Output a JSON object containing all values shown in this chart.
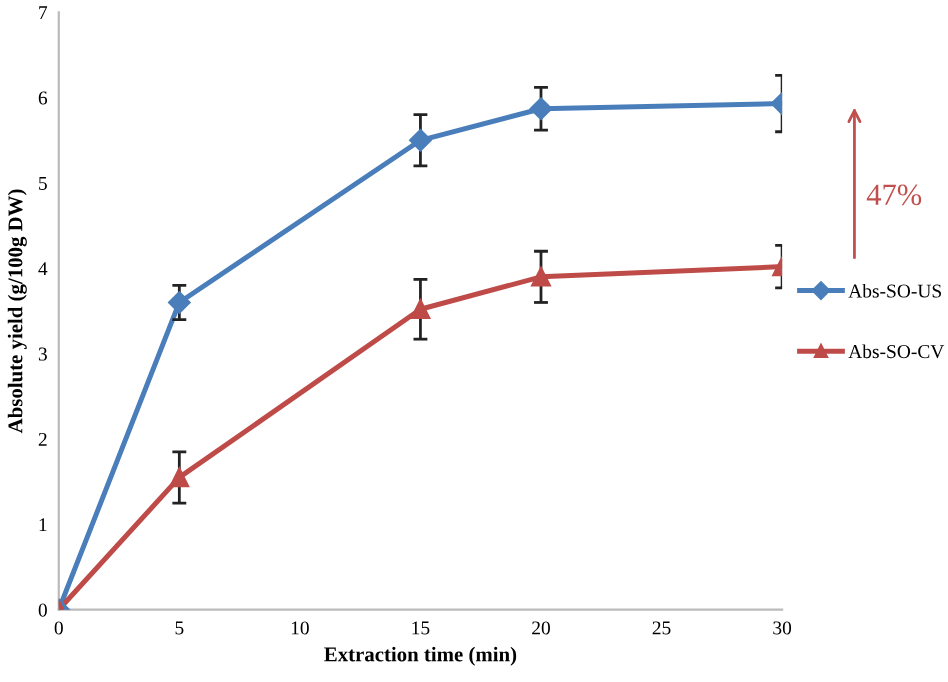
{
  "chart_data": {
    "type": "line",
    "xlabel": "Extraction time (min)",
    "ylabel": "Absolute yield (g/100g DW)",
    "x": [
      0,
      5,
      15,
      20,
      30
    ],
    "series": [
      {
        "name": "Abs-SO-US",
        "color": "#4a7ebb",
        "marker": "diamond",
        "values": [
          0,
          3.6,
          5.5,
          5.87,
          5.93
        ],
        "errors": [
          null,
          0.2,
          0.3,
          0.25,
          0.33
        ]
      },
      {
        "name": "Abs-SO-CV",
        "color": "#be4b48",
        "marker": "triangle",
        "values": [
          0,
          1.55,
          3.52,
          3.9,
          4.02
        ],
        "errors": [
          null,
          0.3,
          0.35,
          0.3,
          0.25
        ]
      }
    ],
    "xlim": [
      0,
      30
    ],
    "xticks": [
      0,
      5,
      10,
      15,
      20,
      25,
      30
    ],
    "ylim": [
      0,
      7
    ],
    "yticks": [
      0,
      1,
      2,
      3,
      4,
      5,
      6,
      7
    ],
    "grid": false,
    "legend": "right",
    "annotations": [
      "47%"
    ]
  }
}
